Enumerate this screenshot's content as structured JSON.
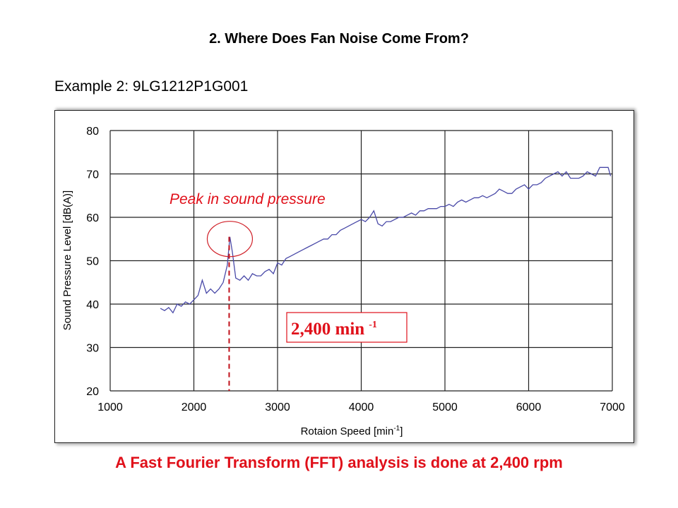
{
  "page": {
    "title": "2. Where Does Fan Noise Come From?",
    "subtitle": "Example 2: 9LG1212P1G001",
    "footer": "A Fast Fourier Transform (FFT) analysis is done at 2,400 rpm"
  },
  "colors": {
    "series": "#4a4aa8",
    "annotation": "#e0101a",
    "grid": "#222222"
  },
  "chart_data": {
    "type": "line",
    "title": "",
    "xlabel": "Rotaion Speed [min",
    "xlabel_sup": "-1",
    "xlabel_end": "]",
    "ylabel": "Sound Pressure Level [dB(A)]",
    "xlim": [
      1000,
      7000
    ],
    "ylim": [
      20,
      80
    ],
    "xticks": [
      "1000",
      "2000",
      "3000",
      "4000",
      "5000",
      "6000",
      "7000"
    ],
    "yticks": [
      "20",
      "30",
      "40",
      "50",
      "60",
      "70",
      "80"
    ],
    "grid": true,
    "series": [
      {
        "name": "Sound Pressure Level",
        "x": [
          1600,
          1650,
          1700,
          1750,
          1800,
          1850,
          1900,
          1950,
          2000,
          2050,
          2100,
          2150,
          2200,
          2250,
          2300,
          2350,
          2400,
          2430,
          2460,
          2500,
          2550,
          2600,
          2650,
          2700,
          2750,
          2800,
          2850,
          2900,
          2950,
          3000,
          3050,
          3100,
          3150,
          3200,
          3250,
          3300,
          3350,
          3400,
          3450,
          3500,
          3550,
          3600,
          3650,
          3700,
          3750,
          3800,
          3850,
          3900,
          3950,
          4000,
          4050,
          4100,
          4150,
          4200,
          4250,
          4300,
          4350,
          4400,
          4450,
          4500,
          4550,
          4600,
          4650,
          4700,
          4750,
          4800,
          4850,
          4900,
          4950,
          5000,
          5050,
          5100,
          5150,
          5200,
          5250,
          5300,
          5350,
          5400,
          5450,
          5500,
          5550,
          5600,
          5650,
          5700,
          5750,
          5800,
          5850,
          5900,
          5950,
          6000,
          6050,
          6100,
          6150,
          6200,
          6250,
          6300,
          6350,
          6400,
          6450,
          6500,
          6550,
          6600,
          6650,
          6700,
          6750,
          6800,
          6850,
          6900,
          6950,
          6980
        ],
        "y": [
          39,
          38.5,
          39.2,
          38,
          40,
          39.5,
          40.5,
          40,
          41,
          42,
          45.5,
          42.5,
          43.5,
          42.5,
          43.5,
          45,
          49,
          55.5,
          52,
          46,
          45.5,
          46.5,
          45.5,
          47,
          46.5,
          46.5,
          47.5,
          48,
          47,
          49.5,
          49,
          50.5,
          51,
          51.5,
          52,
          52.5,
          53,
          53.5,
          54,
          54.5,
          55,
          55,
          56,
          56,
          57,
          57.5,
          58,
          58.5,
          59,
          59.5,
          59,
          60,
          61.5,
          58.5,
          58,
          59,
          59,
          59.5,
          60,
          60,
          60.5,
          61,
          60.5,
          61.5,
          61.5,
          62,
          62,
          62,
          62.5,
          62.5,
          63,
          62.5,
          63.5,
          64,
          63.5,
          64,
          64.5,
          64.5,
          65,
          64.5,
          65,
          65.5,
          66.5,
          66,
          65.5,
          65.5,
          66.5,
          67,
          67.5,
          66.5,
          67.5,
          67.5,
          68,
          69,
          69.5,
          70,
          70.5,
          69.5,
          70.5,
          69,
          69,
          69,
          69.5,
          70.5,
          70,
          69.5,
          71.5,
          71.5,
          71.5,
          69.5
        ]
      }
    ],
    "annotations": {
      "peak_label": "Peak in sound pressure",
      "peak_x": 2430,
      "peak_y": 55.5,
      "marker_label": "2,400 min",
      "marker_sup": "-1"
    }
  }
}
